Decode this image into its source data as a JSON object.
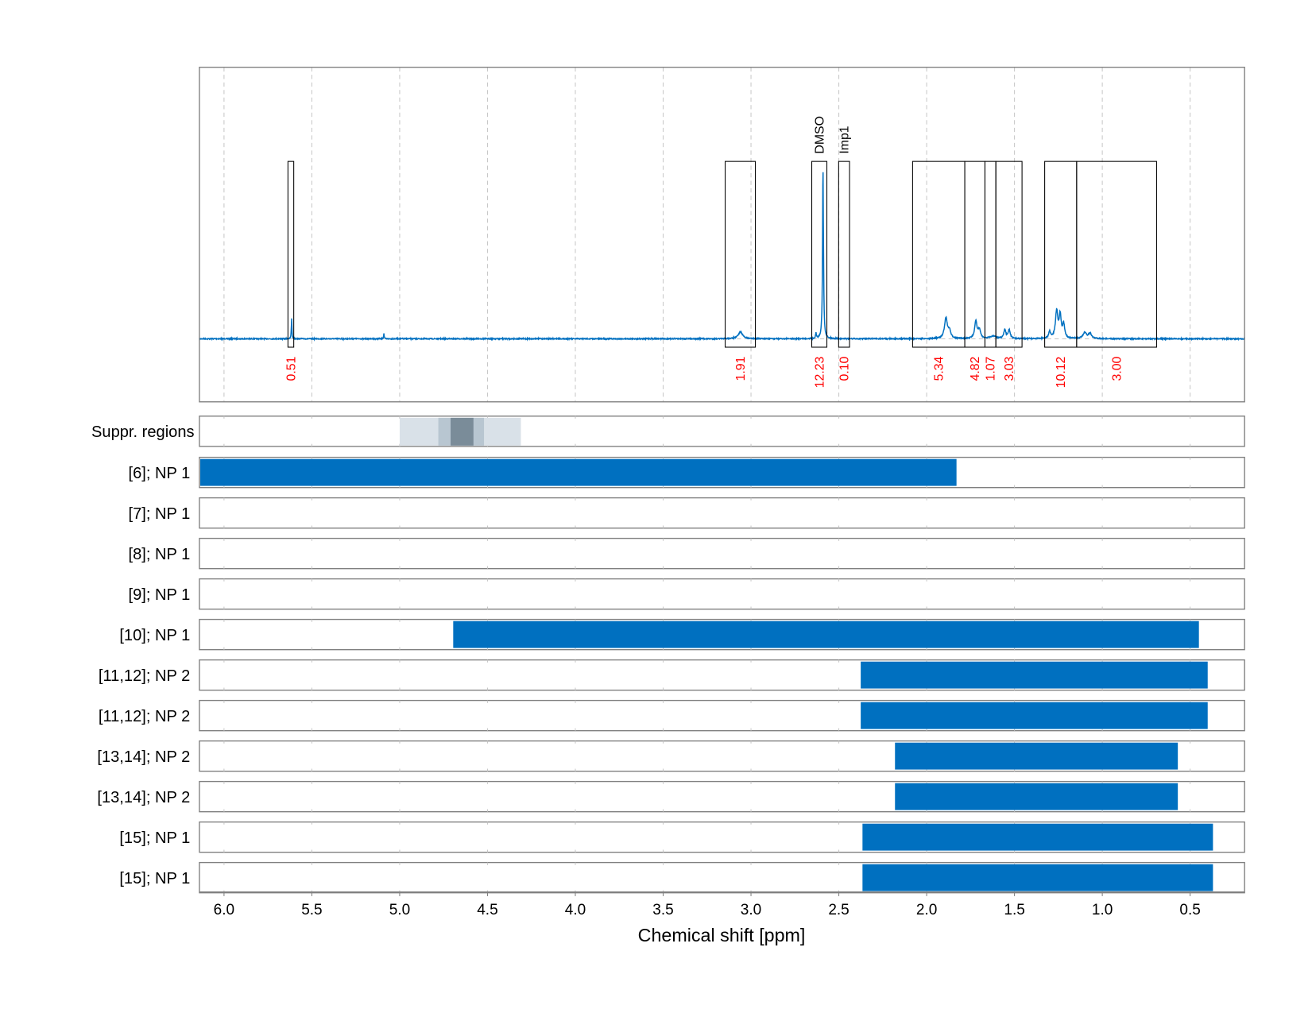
{
  "chart_data": {
    "type": "line",
    "xlabel": "Chemical shift [ppm]",
    "xlim": [
      6.14,
      0.19
    ],
    "x_reversed": true,
    "xticks": [
      6.0,
      5.5,
      5.0,
      4.5,
      4.0,
      3.5,
      3.0,
      2.5,
      2.0,
      1.5,
      1.0,
      0.5
    ],
    "xtick_labels": [
      "6.0",
      "5.5",
      "5.0",
      "4.5",
      "4.0",
      "3.5",
      "3.0",
      "2.5",
      "2.0",
      "1.5",
      "1.0",
      "0.5"
    ],
    "grid": true,
    "spectrum": {
      "color": "#0070c0",
      "peaks": [
        {
          "ppm": 5.615,
          "height": 0.12,
          "width": 0.002
        },
        {
          "ppm": 5.09,
          "height": 0.03,
          "width": 0.002
        },
        {
          "ppm": 3.06,
          "height": 0.04,
          "width": 0.015
        },
        {
          "ppm": 2.63,
          "height": 0.03,
          "width": 0.003
        },
        {
          "ppm": 2.59,
          "height": 1.0,
          "width": 0.003
        },
        {
          "ppm": 1.89,
          "height": 0.12,
          "width": 0.01
        },
        {
          "ppm": 1.87,
          "height": 0.04,
          "width": 0.008
        },
        {
          "ppm": 1.72,
          "height": 0.1,
          "width": 0.008
        },
        {
          "ppm": 1.7,
          "height": 0.05,
          "width": 0.008
        },
        {
          "ppm": 1.62,
          "height": 0.015,
          "width": 0.02
        },
        {
          "ppm": 1.555,
          "height": 0.05,
          "width": 0.007
        },
        {
          "ppm": 1.53,
          "height": 0.05,
          "width": 0.007
        },
        {
          "ppm": 1.3,
          "height": 0.04,
          "width": 0.006
        },
        {
          "ppm": 1.26,
          "height": 0.16,
          "width": 0.008
        },
        {
          "ppm": 1.24,
          "height": 0.13,
          "width": 0.007
        },
        {
          "ppm": 1.22,
          "height": 0.08,
          "width": 0.007
        },
        {
          "ppm": 1.1,
          "height": 0.035,
          "width": 0.012
        },
        {
          "ppm": 1.07,
          "height": 0.03,
          "width": 0.01
        }
      ]
    },
    "integration_regions": [
      {
        "from": 5.636,
        "to": 5.603,
        "integral": "0.51",
        "name": ""
      },
      {
        "from": 3.147,
        "to": 2.975,
        "integral": "1.91",
        "name": ""
      },
      {
        "from": 2.654,
        "to": 2.568,
        "integral": "12.23",
        "name": "DMSO"
      },
      {
        "from": 2.501,
        "to": 2.439,
        "integral": "0.10",
        "name": "Imp1"
      },
      {
        "from": 2.08,
        "to": 1.783,
        "integral": "5.34",
        "name": ""
      },
      {
        "from": 1.783,
        "to": 1.668,
        "integral": "4.82",
        "name": ""
      },
      {
        "from": 1.668,
        "to": 1.606,
        "integral": "1.07",
        "name": ""
      },
      {
        "from": 1.606,
        "to": 1.457,
        "integral": "3.03",
        "name": ""
      },
      {
        "from": 1.328,
        "to": 1.146,
        "integral": "10.12",
        "name": ""
      },
      {
        "from": 1.146,
        "to": 0.691,
        "integral": "3.00",
        "name": ""
      }
    ],
    "integral_label_color": "#ff0000",
    "suppressed_regions": {
      "label": "Suppr. regions",
      "bands": [
        {
          "from": 5.0,
          "to": 4.31,
          "color": "#d9e1e8"
        },
        {
          "from": 4.78,
          "to": 4.52,
          "color": "#b8c6d1"
        },
        {
          "from": 4.71,
          "to": 4.58,
          "color": "#7a8c99"
        }
      ]
    },
    "bar_color": "#0070c0",
    "rows": [
      {
        "label": "[6]; NP 1",
        "from": 6.14,
        "to": 1.83
      },
      {
        "label": "[7]; NP 1",
        "from": null,
        "to": null
      },
      {
        "label": "[8]; NP 1",
        "from": null,
        "to": null
      },
      {
        "label": "[9]; NP 1",
        "from": null,
        "to": null
      },
      {
        "label": "[10]; NP 1",
        "from": 4.7,
        "to": 0.45
      },
      {
        "label": "[11,12]; NP 2",
        "from": 2.38,
        "to": 0.4
      },
      {
        "label": "[11,12]; NP 2",
        "from": 2.38,
        "to": 0.4
      },
      {
        "label": "[13,14]; NP 2",
        "from": 2.185,
        "to": 0.57
      },
      {
        "label": "[13,14]; NP 2",
        "from": 2.185,
        "to": 0.57
      },
      {
        "label": "[15]; NP 1",
        "from": 2.37,
        "to": 0.37
      },
      {
        "label": "[15]; NP 1",
        "from": 2.37,
        "to": 0.37
      }
    ]
  }
}
